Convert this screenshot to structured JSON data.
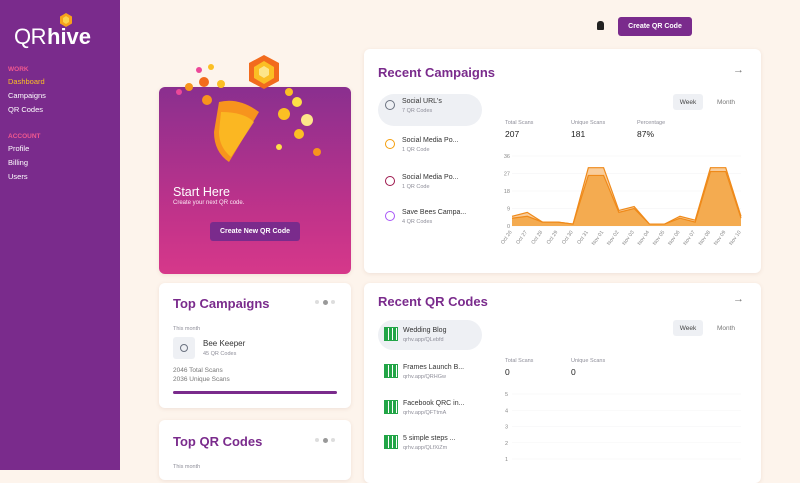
{
  "sidebar": {
    "logo": {
      "prefix": "QR",
      "suffix": "hive"
    },
    "sections": [
      {
        "label": "WORK",
        "items": [
          "Dashboard",
          "Campaigns",
          "QR Codes"
        ]
      },
      {
        "label": "ACCOUNT",
        "items": [
          "Profile",
          "Billing",
          "Users"
        ]
      }
    ]
  },
  "header": {
    "button": "Create QR Code"
  },
  "hero": {
    "title": "Start Here",
    "subtitle": "Create your next QR code.",
    "button": "Create New QR Code"
  },
  "recent_campaigns": {
    "title": "Recent Campaigns",
    "items": [
      {
        "name": "Social URL's",
        "count": "7 QR Codes"
      },
      {
        "name": "Social Media Po...",
        "count": "1 QR Code"
      },
      {
        "name": "Social Media Po...",
        "count": "1 QR Code"
      },
      {
        "name": "Save Bees Campa...",
        "count": "4 QR Codes"
      }
    ],
    "tabs": [
      "Week",
      "Month"
    ],
    "stats": [
      {
        "label": "Total Scans",
        "value": "207"
      },
      {
        "label": "Unique Scans",
        "value": "181"
      },
      {
        "label": "Percentage",
        "value": "87%"
      }
    ],
    "chart": {
      "type": "area",
      "categories": [
        "Oct 26",
        "Oct 27",
        "Oct 28",
        "Oct 29",
        "Oct 30",
        "Oct 31",
        "Nov 01",
        "Nov 02",
        "Nov 03",
        "Nov 04",
        "Nov 05",
        "Nov 06",
        "Nov 07",
        "Nov 08",
        "Nov 09",
        "Nov 10"
      ],
      "series": [
        {
          "color": "#f8c48a",
          "values": [
            5,
            7,
            2,
            2,
            1,
            30,
            30,
            8,
            10,
            1,
            1,
            5,
            3,
            30,
            30,
            5
          ]
        },
        {
          "color": "#f3a443",
          "values": [
            4,
            5,
            2,
            2,
            1,
            26,
            26,
            7,
            9,
            1,
            1,
            4,
            2,
            28,
            28,
            4
          ]
        }
      ],
      "ylim": [
        0,
        36
      ],
      "yticks": [
        0,
        9,
        18,
        27,
        36
      ]
    }
  },
  "top_campaigns": {
    "title": "Top Campaigns",
    "period": "This month",
    "item": {
      "name": "Bee Keeper",
      "count": "45 QR Codes"
    },
    "total": "2046 Total Scans",
    "unique": "2036 Unique Scans"
  },
  "top_qr_codes": {
    "title": "Top QR Codes",
    "period": "This month"
  },
  "recent_qr_codes": {
    "title": "Recent QR Codes",
    "items": [
      {
        "name": "Wedding Blog",
        "url": "qrhv.app/QLebfd"
      },
      {
        "name": "Frames Launch B...",
        "url": "qrhv.app/QRHGw"
      },
      {
        "name": "Facebook QRC in...",
        "url": "qrhv.app/QFTtmA"
      },
      {
        "name": "5 simple steps ...",
        "url": "qrhv.app/QLfXiZm"
      }
    ],
    "tabs": [
      "Week",
      "Month"
    ],
    "stats": [
      {
        "label": "Total Scans",
        "value": "0"
      },
      {
        "label": "Unique Scans",
        "value": "0"
      }
    ],
    "chart": {
      "ylim": [
        1,
        5
      ],
      "yticks": [
        1,
        2,
        3,
        4,
        5
      ]
    }
  }
}
